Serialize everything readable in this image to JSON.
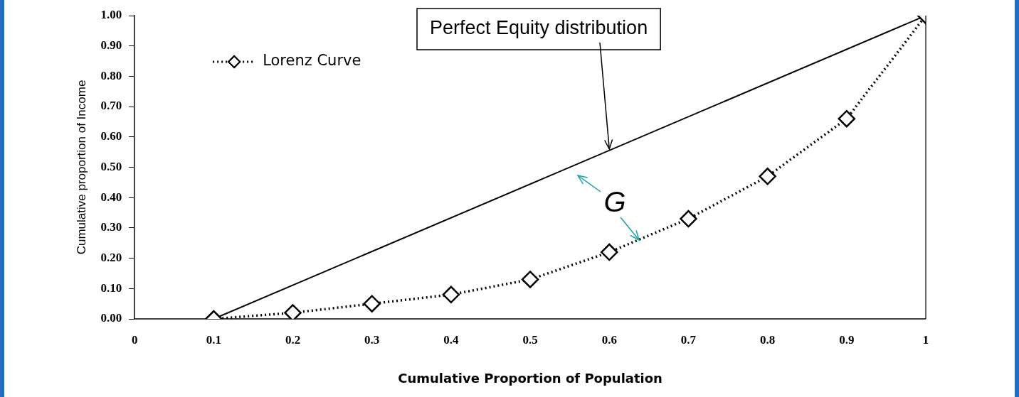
{
  "chart_data": {
    "type": "line",
    "xlabel": "Cumulative Proportion of Population",
    "ylabel": "Cumulative proportion of Income",
    "x": [
      0.1,
      0.2,
      0.3,
      0.4,
      0.5,
      0.6,
      0.7,
      0.8,
      0.9,
      1
    ],
    "series": [
      {
        "name": "Lorenz Curve",
        "color": "#000000",
        "values": [
          0.0,
          0.02,
          0.05,
          0.08,
          0.13,
          0.22,
          0.33,
          0.47,
          0.66,
          1.0
        ],
        "marker": "diamond",
        "line_style": "dotted"
      },
      {
        "color": "#000000",
        "x": [
          0.1,
          1
        ],
        "values": [
          0.0,
          1.0
        ],
        "marker": "none",
        "line_style": "solid"
      }
    ],
    "ref_lines": [
      {
        "axis": "x",
        "value": 1,
        "color": "#000000"
      }
    ],
    "xlim": [
      0,
      1
    ],
    "xticks": [
      0,
      0.1,
      0.2,
      0.3,
      0.4,
      0.5,
      0.6,
      0.7,
      0.8,
      0.9,
      1
    ],
    "ylim": [
      0,
      1
    ],
    "yticks": [
      {
        "value": 0,
        "label": "0.00"
      },
      {
        "value": 0.1,
        "label": "0.10"
      },
      {
        "value": 0.2,
        "label": "0.20"
      },
      {
        "value": 0.3,
        "label": "0.30"
      },
      {
        "value": 0.4,
        "label": "0.40"
      },
      {
        "value": 0.5,
        "label": "0.50"
      },
      {
        "value": 0.6,
        "label": "0.60"
      },
      {
        "value": 0.7,
        "label": "0.70"
      },
      {
        "value": 0.8,
        "label": "0.80"
      },
      {
        "value": 0.9,
        "label": "0.90"
      },
      {
        "value": 1,
        "label": "1.00"
      }
    ],
    "grid": false,
    "legend": "top left",
    "annotations": [
      {
        "text": "Perfect Equity distribution",
        "x": 0.6,
        "y": 0.56
      },
      "G"
    ]
  }
}
